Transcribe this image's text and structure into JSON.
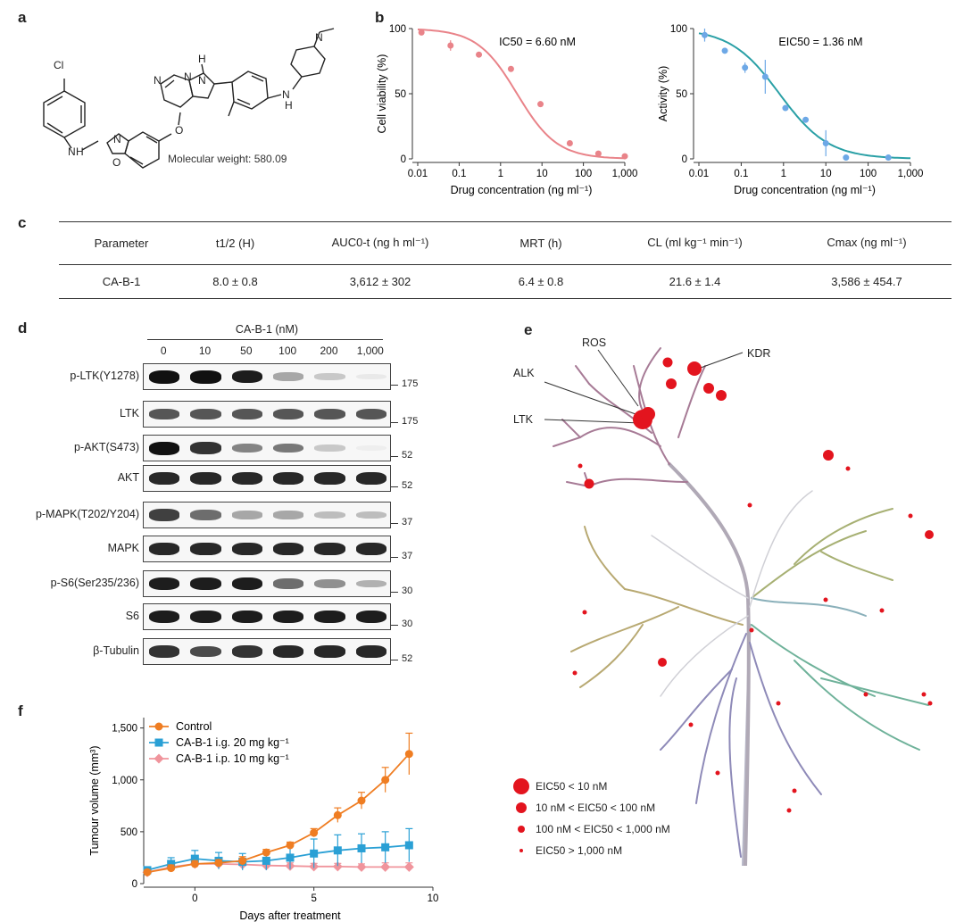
{
  "panel_labels": {
    "a": "a",
    "b": "b",
    "c": "c",
    "d": "d",
    "e": "e",
    "f": "f"
  },
  "panel_a": {
    "atom_labels": [
      "Cl",
      "N",
      "H",
      "N",
      "O",
      "O",
      "N",
      "N",
      "N",
      "H",
      "N",
      "H",
      "N"
    ],
    "molecular_weight": "Molecular weight: 580.09"
  },
  "panel_c": {
    "headers": [
      "Parameter",
      "t1/2 (H)",
      "AUC0-t (ng h ml⁻¹)",
      "MRT (h)",
      "CL (ml kg⁻¹ min⁻¹)",
      "Cmax (ng ml⁻¹)"
    ],
    "row": [
      "CA-B-1",
      "8.0 ± 0.8",
      "3,612 ± 302",
      "6.4 ± 0.8",
      "21.6 ± 1.4",
      "3,586 ± 454.7"
    ]
  },
  "panel_d": {
    "treatment": "CA-B-1 (nM)",
    "concentrations": [
      "0",
      "10",
      "50",
      "100",
      "200",
      "1,000"
    ],
    "blots": [
      {
        "label": "p-LTK(Y1278)",
        "mw": "175",
        "intensity": [
          1,
          1,
          0.95,
          0.35,
          0.2,
          0.06
        ]
      },
      {
        "label": "LTK",
        "mw": "175",
        "intensity": [
          0.7,
          0.7,
          0.7,
          0.7,
          0.7,
          0.7
        ]
      },
      {
        "label": "p-AKT(S473)",
        "mw": "52",
        "intensity": [
          1,
          0.85,
          0.5,
          0.55,
          0.2,
          0.03
        ]
      },
      {
        "label": "AKT",
        "mw": "52",
        "intensity": [
          0.9,
          0.9,
          0.9,
          0.9,
          0.9,
          0.9
        ]
      },
      {
        "label": "p-MAPK(T202/Y204)",
        "mw": "37",
        "intensity": [
          0.8,
          0.6,
          0.35,
          0.35,
          0.25,
          0.25
        ]
      },
      {
        "label": "MAPK",
        "mw": "37",
        "intensity": [
          0.9,
          0.9,
          0.9,
          0.9,
          0.9,
          0.9
        ]
      },
      {
        "label": "p-S6(Ser235/236)",
        "mw": "30",
        "intensity": [
          0.95,
          0.95,
          0.95,
          0.6,
          0.45,
          0.3
        ]
      },
      {
        "label": "S6",
        "mw": "30",
        "intensity": [
          0.95,
          0.95,
          0.95,
          0.95,
          0.95,
          0.95
        ]
      },
      {
        "label": "β-Tubulin",
        "mw": "52",
        "intensity": [
          0.85,
          0.75,
          0.85,
          0.9,
          0.9,
          0.9
        ]
      }
    ]
  },
  "panel_e": {
    "labels": [
      "ROS",
      "KDR",
      "ALK",
      "LTK"
    ],
    "legend": [
      "EIC50 < 10 nM",
      "10 nM < EIC50 < 100 nM",
      "100 nM < EIC50 < 1,000 nM",
      "EIC50 > 1,000 nM"
    ]
  },
  "chart_data": [
    {
      "id": "b-left",
      "type": "scatter",
      "title": "",
      "annotation": "IC50 = 6.60 nM",
      "xlabel": "Drug concentration (ng ml⁻¹)",
      "ylabel": "Cell viability (%)",
      "xscale": "log",
      "xlim": [
        0.01,
        1000
      ],
      "ylim": [
        0,
        100
      ],
      "xticks": [
        0.01,
        0.1,
        1,
        10,
        100,
        1000
      ],
      "xticklabels": [
        "0.01",
        "0.1",
        "1",
        "10",
        "100",
        "1,000"
      ],
      "yticks": [
        0,
        50,
        100
      ],
      "x": [
        0.0123,
        0.062,
        0.3,
        1.78,
        9.2,
        47,
        230,
        1000
      ],
      "y": [
        97,
        87,
        80,
        69,
        42,
        12,
        4,
        2
      ],
      "err": [
        0,
        4,
        0,
        0,
        0,
        0,
        0,
        0
      ],
      "fit_ic50": 2.5,
      "fit_hill": 0.9,
      "color": "#e98389"
    },
    {
      "id": "b-right",
      "type": "scatter",
      "title": "",
      "annotation": "EIC50 = 1.36 nM",
      "xlabel": "Drug concentration (ng ml⁻¹)",
      "ylabel": "Activity (%)",
      "xscale": "log",
      "xlim": [
        0.01,
        1000
      ],
      "ylim": [
        0,
        100
      ],
      "xticks": [
        0.01,
        0.1,
        1,
        10,
        100,
        1000
      ],
      "xticklabels": [
        "0.01",
        "0.1",
        "1",
        "10",
        "100",
        "1,000"
      ],
      "yticks": [
        0,
        50,
        100
      ],
      "x": [
        0.0137,
        0.041,
        0.123,
        0.37,
        1.11,
        3.33,
        10,
        30,
        300
      ],
      "y": [
        95,
        83,
        70,
        63,
        39,
        30,
        12,
        1,
        1
      ],
      "err": [
        5,
        2,
        4,
        13,
        0,
        0,
        10,
        0,
        0
      ],
      "fit_ic50": 0.8,
      "fit_hill": 0.75,
      "color": "#2aa0a6",
      "point_color": "#6da8e6"
    },
    {
      "id": "f",
      "type": "line",
      "title": "",
      "xlabel": "Days after treatment",
      "ylabel": "Tumour volume (mm³)",
      "xlim": [
        -2,
        10
      ],
      "ylim": [
        0,
        1600
      ],
      "xticks": [
        0,
        5,
        10
      ],
      "yticks": [
        0,
        500,
        1000,
        1500
      ],
      "yticklabels": [
        "0",
        "500",
        "1,000",
        "1,500"
      ],
      "legend_position": "top-left",
      "x": [
        -2,
        -1,
        0,
        1,
        2,
        3,
        4,
        5,
        6,
        7,
        8,
        9
      ],
      "series": [
        {
          "name": "Control",
          "marker": "circle",
          "color": "#ef7d22",
          "values": [
            110,
            150,
            190,
            200,
            220,
            300,
            370,
            490,
            660,
            800,
            1000,
            1250
          ],
          "err": [
            20,
            30,
            30,
            30,
            40,
            30,
            30,
            40,
            70,
            80,
            120,
            200
          ]
        },
        {
          "name": "CA-B-1 i.g. 20 mg kg⁻¹",
          "marker": "square",
          "color": "#2aa0d5",
          "values": [
            130,
            190,
            240,
            220,
            210,
            220,
            250,
            290,
            320,
            340,
            350,
            370
          ],
          "err": [
            20,
            60,
            80,
            80,
            80,
            90,
            110,
            140,
            150,
            140,
            150,
            160
          ]
        },
        {
          "name": "CA-B-1 i.p. 10 mg kg⁻¹",
          "marker": "diamond",
          "color": "#f0949c",
          "values": [
            110,
            160,
            190,
            190,
            185,
            175,
            170,
            165,
            165,
            160,
            160,
            160
          ],
          "err": [
            10,
            30,
            40,
            30,
            30,
            30,
            30,
            30,
            30,
            30,
            40,
            40
          ]
        }
      ]
    }
  ]
}
